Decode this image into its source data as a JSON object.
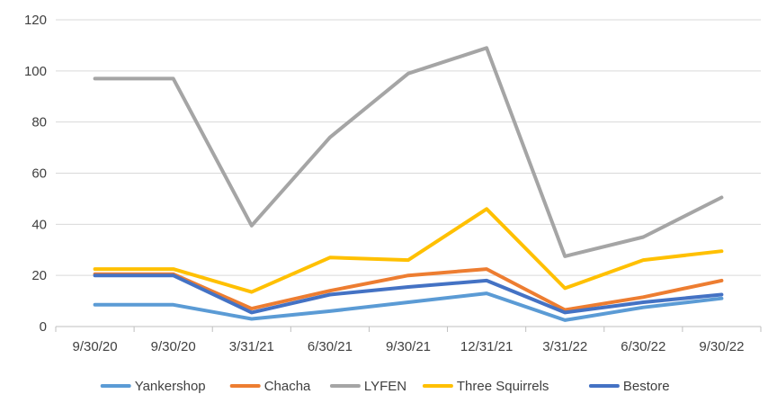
{
  "chart_data": {
    "type": "line",
    "title": "",
    "xlabel": "",
    "ylabel": "",
    "categories": [
      "9/30/20",
      "9/30/20",
      "3/31/21",
      "6/30/21",
      "9/30/21",
      "12/31/21",
      "3/31/22",
      "6/30/22",
      "9/30/22"
    ],
    "ylim": [
      0,
      120
    ],
    "yticks": [
      "0",
      "20",
      "40",
      "60",
      "80",
      "100",
      "120"
    ],
    "grid": true,
    "legend_position": "bottom",
    "series": [
      {
        "name": "Yankershop",
        "color": "#5B9BD5",
        "values": [
          8.5,
          8.5,
          3,
          6,
          9.5,
          13,
          2.5,
          7.5,
          11
        ]
      },
      {
        "name": "Chacha",
        "color": "#ED7D31",
        "values": [
          20.5,
          20.5,
          7,
          14,
          20,
          22.5,
          6.5,
          11.5,
          18
        ]
      },
      {
        "name": "LYFEN",
        "color": "#A5A5A5",
        "values": [
          97,
          97,
          39.5,
          74,
          99,
          109,
          27.5,
          35,
          50.5
        ]
      },
      {
        "name": "Three Squirrels",
        "color": "#FFC000",
        "values": [
          22.5,
          22.5,
          13.5,
          27,
          26,
          46,
          15,
          26,
          29.5
        ]
      },
      {
        "name": "Bestore",
        "color": "#4472C4",
        "values": [
          20,
          20,
          5.5,
          12.5,
          15.5,
          18,
          5.5,
          9.5,
          12.5
        ]
      }
    ]
  }
}
